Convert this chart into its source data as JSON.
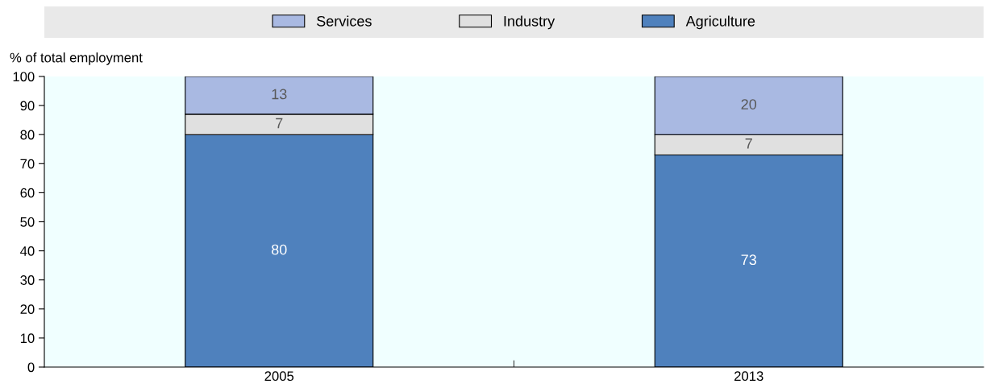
{
  "chart_data": {
    "type": "bar",
    "stacked": true,
    "ylabel": "% of total employment",
    "categories": [
      "2005",
      "2013"
    ],
    "series": [
      {
        "name": "Agriculture",
        "color": "#4f81bd",
        "values": [
          80,
          73
        ]
      },
      {
        "name": "Industry",
        "color": "#e0e0e0",
        "values": [
          7,
          7
        ]
      },
      {
        "name": "Services",
        "color": "#a9b9e2",
        "values": [
          13,
          20
        ]
      }
    ],
    "ylim": [
      0,
      100
    ],
    "yticks": [
      0,
      10,
      20,
      30,
      40,
      50,
      60,
      70,
      80,
      90,
      100
    ],
    "data_labels": true,
    "grid": false,
    "legend": "top"
  }
}
